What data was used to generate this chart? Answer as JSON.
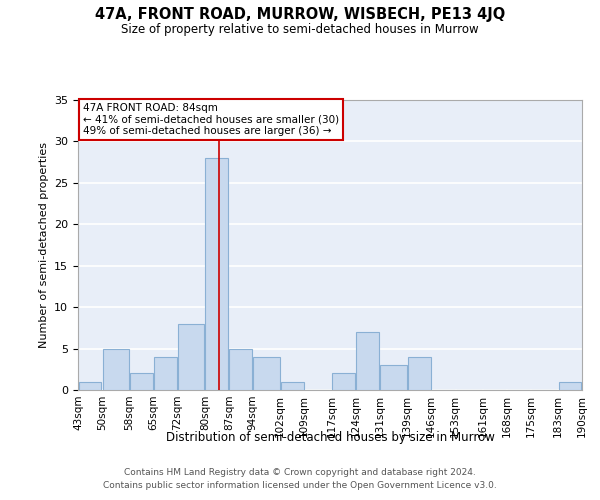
{
  "title": "47A, FRONT ROAD, MURROW, WISBECH, PE13 4JQ",
  "subtitle": "Size of property relative to semi-detached houses in Murrow",
  "xlabel": "Distribution of semi-detached houses by size in Murrow",
  "ylabel": "Number of semi-detached properties",
  "bin_edges": [
    43,
    50,
    58,
    65,
    72,
    80,
    87,
    94,
    102,
    109,
    117,
    124,
    131,
    139,
    146,
    153,
    161,
    168,
    175,
    183,
    190
  ],
  "bin_labels": [
    "43sqm",
    "50sqm",
    "58sqm",
    "65sqm",
    "72sqm",
    "80sqm",
    "87sqm",
    "94sqm",
    "102sqm",
    "109sqm",
    "117sqm",
    "124sqm",
    "131sqm",
    "139sqm",
    "146sqm",
    "153sqm",
    "161sqm",
    "168sqm",
    "175sqm",
    "183sqm",
    "190sqm"
  ],
  "counts": [
    1,
    5,
    2,
    4,
    8,
    28,
    5,
    4,
    1,
    0,
    2,
    7,
    3,
    4,
    0,
    0,
    0,
    0,
    0,
    1
  ],
  "bar_color": "#c8d9ee",
  "bar_edgecolor": "#8ab0d4",
  "property_size": 84,
  "marker_line_color": "#cc0000",
  "annotation_line1": "47A FRONT ROAD: 84sqm",
  "annotation_line2": "← 41% of semi-detached houses are smaller (30)",
  "annotation_line3": "49% of semi-detached houses are larger (36) →",
  "annotation_box_color": "#ffffff",
  "annotation_box_edgecolor": "#cc0000",
  "ylim": [
    0,
    35
  ],
  "yticks": [
    0,
    5,
    10,
    15,
    20,
    25,
    30,
    35
  ],
  "background_color": "#e8eef8",
  "grid_color": "#ffffff",
  "footer_line1": "Contains HM Land Registry data © Crown copyright and database right 2024.",
  "footer_line2": "Contains public sector information licensed under the Open Government Licence v3.0."
}
